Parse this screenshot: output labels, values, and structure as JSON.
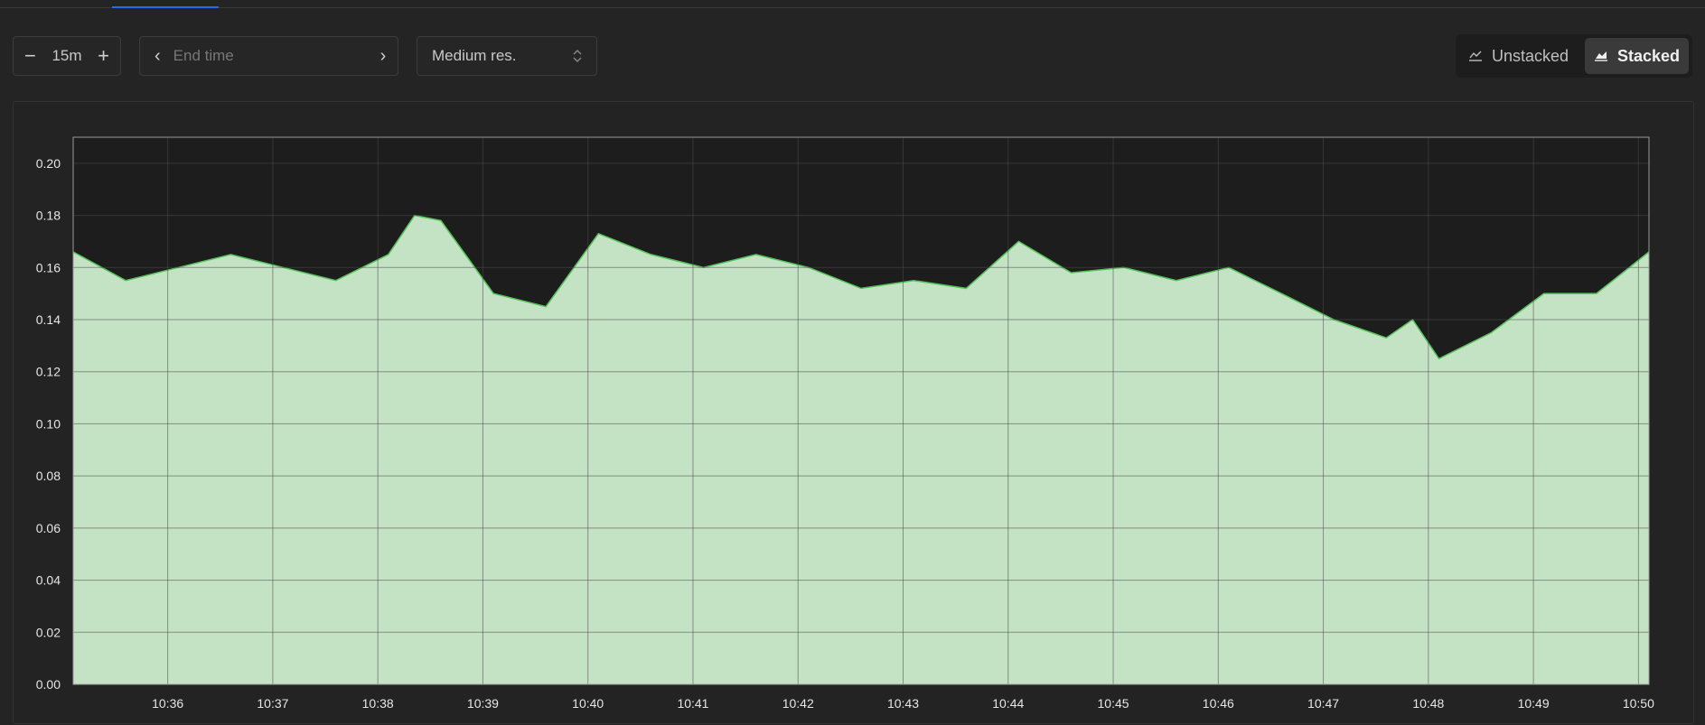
{
  "toolbar": {
    "range": {
      "value": "15m",
      "decrease_label": "−",
      "increase_label": "+"
    },
    "end_time": {
      "placeholder": "End time",
      "prev_label": "‹",
      "next_label": "›"
    },
    "resolution": {
      "value": "Medium res."
    },
    "stacking": {
      "unstacked_label": "Unstacked",
      "stacked_label": "Stacked",
      "active": "stacked"
    }
  },
  "colors": {
    "line": "#56c25a",
    "fill": "#c4e3c4",
    "plot_bg": "#1d1d1d",
    "grid": "#4a4a4a",
    "tab_accent": "#1f6feb"
  },
  "icons": {
    "unstacked": "line-chart-icon",
    "stacked": "area-chart-icon"
  },
  "chart_data": {
    "type": "area",
    "title": "",
    "xlabel": "",
    "ylabel": "",
    "ylim": [
      0,
      0.21
    ],
    "y_ticks": [
      "0.00",
      "0.02",
      "0.04",
      "0.06",
      "0.08",
      "0.10",
      "0.12",
      "0.14",
      "0.16",
      "0.18",
      "0.20"
    ],
    "x_ticks": [
      "10:36",
      "10:37",
      "10:38",
      "10:39",
      "10:40",
      "10:41",
      "10:42",
      "10:43",
      "10:44",
      "10:45",
      "10:46",
      "10:47",
      "10:48",
      "10:49",
      "10:50"
    ],
    "xlim": [
      "10:35:06",
      "10:50:06"
    ],
    "grid": true,
    "stacked": true,
    "series": [
      {
        "x": [
          "10:35:06",
          "10:35:36",
          "10:36:06",
          "10:36:36",
          "10:37:06",
          "10:37:36",
          "10:38:06",
          "10:38:21",
          "10:38:36",
          "10:39:06",
          "10:39:36",
          "10:40:06",
          "10:40:36",
          "10:41:06",
          "10:41:36",
          "10:42:06",
          "10:42:36",
          "10:43:06",
          "10:43:36",
          "10:44:06",
          "10:44:36",
          "10:45:06",
          "10:45:36",
          "10:46:06",
          "10:46:36",
          "10:47:06",
          "10:47:36",
          "10:47:51",
          "10:48:06",
          "10:48:36",
          "10:49:06",
          "10:49:36",
          "10:50:06"
        ],
        "values": [
          0.166,
          0.155,
          0.16,
          0.165,
          0.16,
          0.155,
          0.165,
          0.18,
          0.178,
          0.15,
          0.145,
          0.173,
          0.165,
          0.16,
          0.165,
          0.16,
          0.152,
          0.155,
          0.152,
          0.17,
          0.158,
          0.16,
          0.155,
          0.16,
          0.15,
          0.14,
          0.133,
          0.14,
          0.125,
          0.135,
          0.15,
          0.15,
          0.166
        ]
      }
    ]
  }
}
